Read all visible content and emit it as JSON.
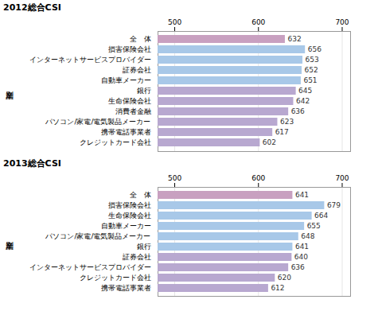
{
  "chart_data": [
    {
      "type": "bar",
      "orientation": "horizontal",
      "title": "2012総合CSI",
      "ylabel": "産業別",
      "categories": [
        "全　体",
        "損害保険会社",
        "インターネットサービスプロバイダー",
        "証券会社",
        "自動車メーカー",
        "銀行",
        "生命保険会社",
        "消費者金融",
        "パソコン/家電/電気製品メーカー",
        "携帯電話事業者",
        "クレジットカード会社"
      ],
      "values": [
        632,
        656,
        653,
        652,
        651,
        645,
        642,
        636,
        623,
        617,
        602
      ],
      "colors": [
        "#c8a0c0",
        "#a8c8e8",
        "#a8c8e8",
        "#a8c8e8",
        "#a8c8e8",
        "#b8a8d0",
        "#b8a8d0",
        "#b8a8d0",
        "#b8a8d0",
        "#b8a8d0",
        "#b8a8d0"
      ],
      "xlim": [
        480,
        710
      ],
      "xticks": [
        500,
        600,
        700
      ],
      "grid": true,
      "data_labels": true
    },
    {
      "type": "bar",
      "orientation": "horizontal",
      "title": "2013総合CSI",
      "ylabel": "産業別",
      "categories": [
        "全　体",
        "損害保険会社",
        "生命保険会社",
        "自動車メーカー",
        "パソコン/家電/電気製品メーカー",
        "銀行",
        "証券会社",
        "インターネットサービスプロバイダー",
        "クレジットカード会社",
        "携帯電話事業者"
      ],
      "values": [
        641,
        679,
        664,
        655,
        648,
        641,
        640,
        636,
        620,
        612
      ],
      "colors": [
        "#c8a0c0",
        "#a8c8e8",
        "#a8c8e8",
        "#a8c8e8",
        "#a8c8e8",
        "#a8c8e8",
        "#b8a8d0",
        "#b8a8d0",
        "#b8a8d0",
        "#b8a8d0"
      ],
      "xlim": [
        480,
        710
      ],
      "xticks": [
        500,
        600,
        700
      ],
      "grid": true,
      "data_labels": true
    }
  ]
}
